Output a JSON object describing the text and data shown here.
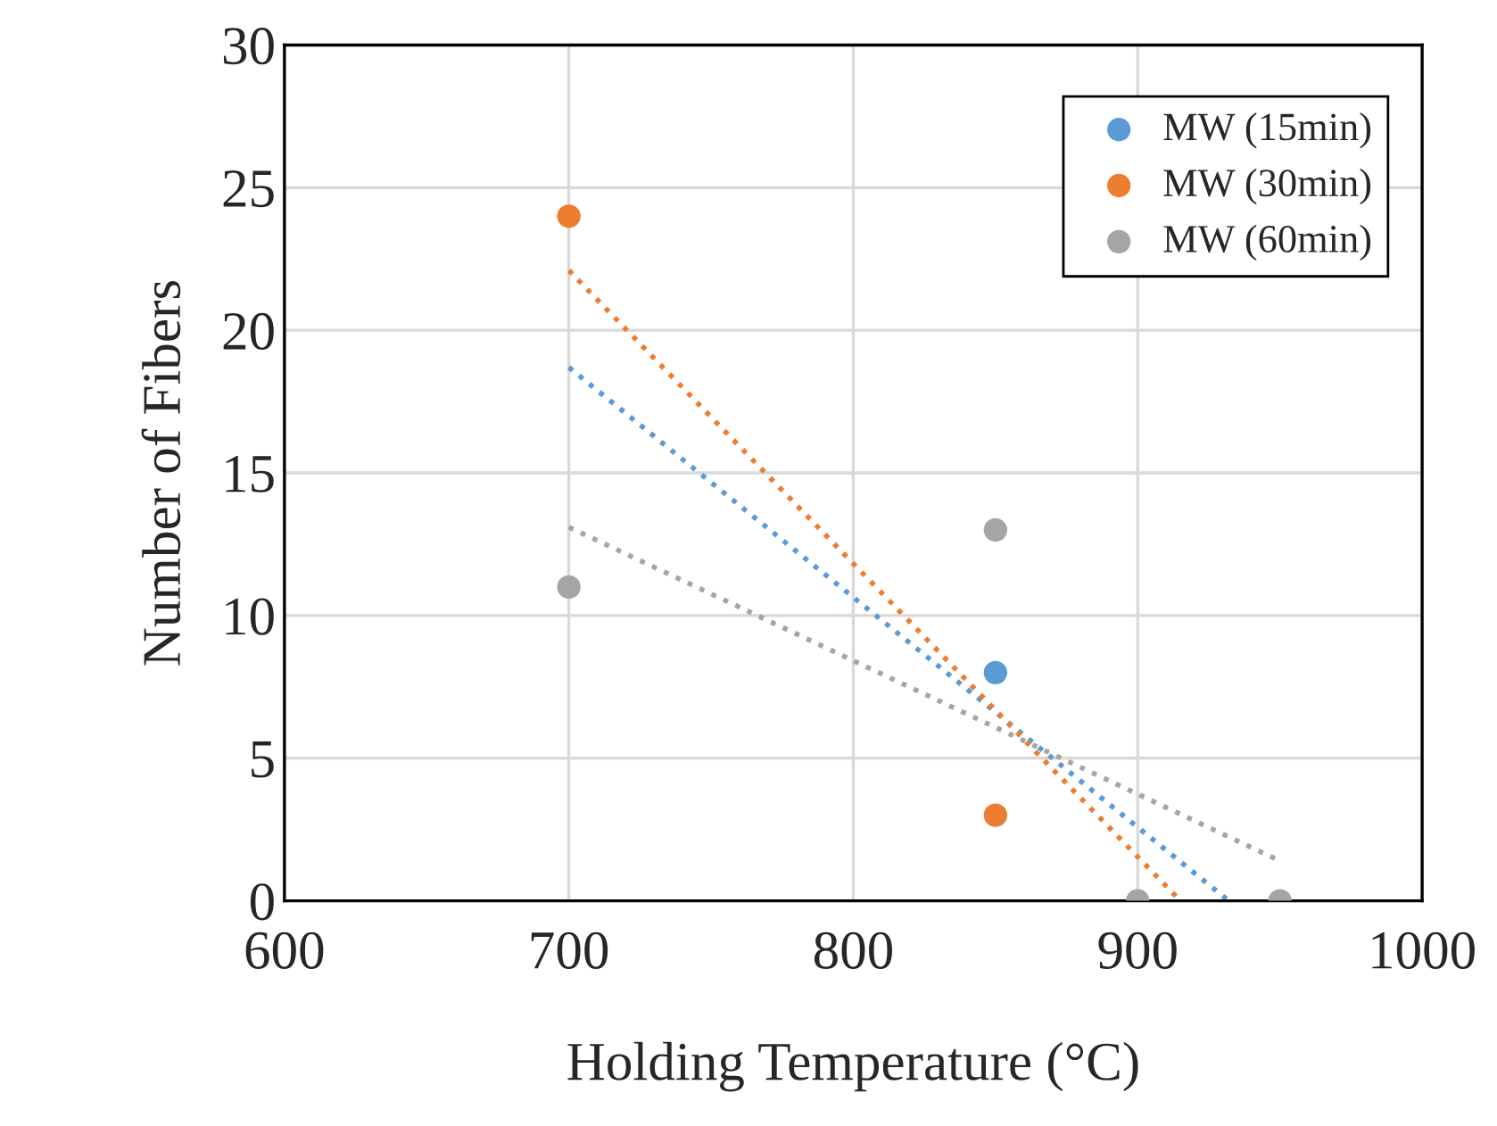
{
  "chart_data": {
    "type": "scatter",
    "xlabel": "Holding Temperature (°C)",
    "ylabel": "Number of Fibers",
    "x": [
      700,
      850,
      900,
      950
    ],
    "series": [
      {
        "name": "MW (15min)",
        "color": "#5b9bd5",
        "values": [
          null,
          8,
          null,
          null
        ]
      },
      {
        "name": "MW (30min)",
        "color": "#ed7d31",
        "values": [
          24,
          3,
          null,
          null
        ]
      },
      {
        "name": "MW (60min)",
        "color": "#a5a5a5",
        "values": [
          11,
          13,
          0,
          0
        ]
      },
      {
        "type": "line",
        "color": "#5b9bd5",
        "x": [
          700,
          932
        ],
        "values": [
          18.7,
          0
        ],
        "line_style": "dotted",
        "marker": "none"
      },
      {
        "type": "line",
        "color": "#ed7d31",
        "x": [
          700,
          915
        ],
        "values": [
          22.1,
          0
        ],
        "line_style": "dotted",
        "marker": "none"
      },
      {
        "type": "line",
        "color": "#a5a5a5",
        "x": [
          700,
          950
        ],
        "values": [
          13.1,
          1.4
        ],
        "line_style": "dotted",
        "marker": "none"
      }
    ],
    "xlim": [
      600,
      1000
    ],
    "xticks": [
      600,
      700,
      800,
      900,
      1000
    ],
    "ylim": [
      0,
      30
    ],
    "yticks": [
      0,
      5,
      10,
      15,
      20,
      25,
      30
    ],
    "grid": true,
    "legend": "top right",
    "marker": "circle"
  }
}
